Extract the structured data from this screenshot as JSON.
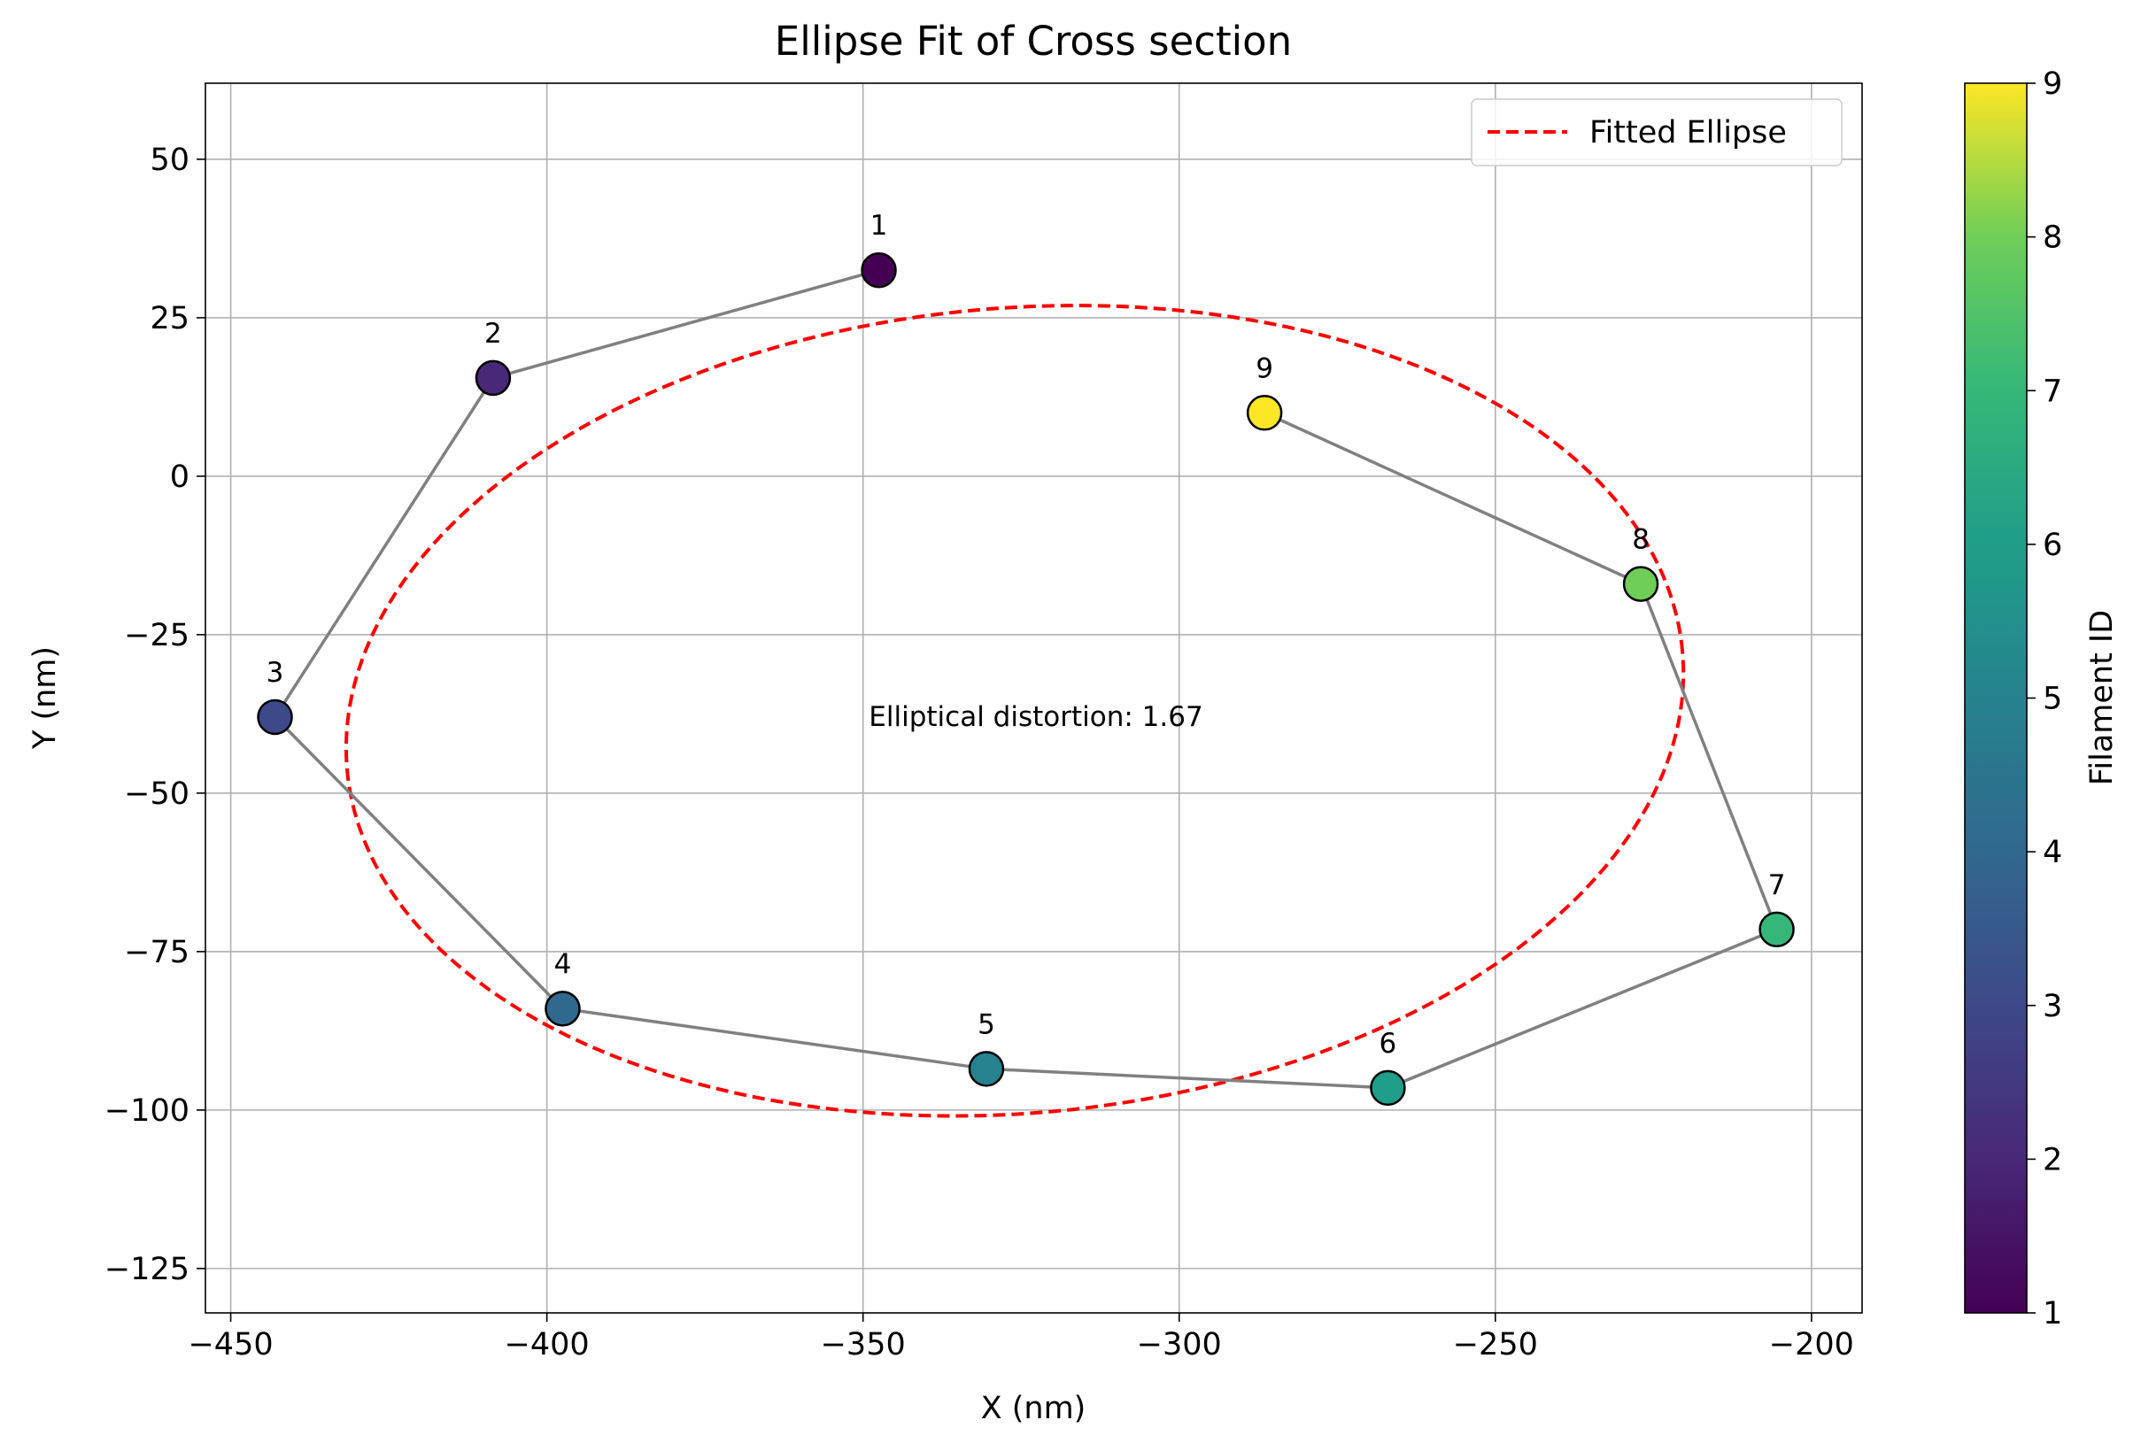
{
  "chart_data": {
    "type": "scatter",
    "title": "Ellipse Fit of Cross section",
    "xlabel": "X (nm)",
    "ylabel": "Y (nm)",
    "xlim": [
      -454,
      -192
    ],
    "ylim": [
      -132,
      62
    ],
    "xticks": [
      -450,
      -400,
      -350,
      -300,
      -250,
      -200
    ],
    "yticks": [
      50,
      25,
      0,
      -25,
      -50,
      -75,
      -100,
      -125
    ],
    "grid": true,
    "legend": {
      "position": "top-right",
      "entries": [
        "Fitted Ellipse"
      ]
    },
    "annotation": "Elliptical distortion: 1.67",
    "points": [
      {
        "id": 1,
        "label": "1",
        "x": -347.5,
        "y": 32.5
      },
      {
        "id": 2,
        "label": "2",
        "x": -408.5,
        "y": 15.5
      },
      {
        "id": 3,
        "label": "3",
        "x": -443,
        "y": -38
      },
      {
        "id": 4,
        "label": "4",
        "x": -397.5,
        "y": -84
      },
      {
        "id": 5,
        "label": "5",
        "x": -330.5,
        "y": -93.5
      },
      {
        "id": 6,
        "label": "6",
        "x": -267,
        "y": -96.5
      },
      {
        "id": 7,
        "label": "7",
        "x": -205.5,
        "y": -71.5
      },
      {
        "id": 8,
        "label": "8",
        "x": -227,
        "y": -17
      },
      {
        "id": 9,
        "label": "9",
        "x": -286.5,
        "y": 10
      }
    ],
    "path_order": [
      1,
      2,
      3,
      4,
      5,
      6,
      7,
      8,
      9
    ],
    "ellipse": {
      "name": "Fitted Ellipse",
      "style": "dashed",
      "color": "#ff0000",
      "center": [
        -326,
        -37
      ],
      "semi_major": 106,
      "semi_minor": 63.5,
      "angle_deg": 5
    },
    "colorbar": {
      "label": "Filament ID",
      "min": 1,
      "max": 9,
      "ticks": [
        1,
        2,
        3,
        4,
        5,
        6,
        7,
        8,
        9
      ],
      "colormap": "viridis"
    },
    "colors": {
      "path_line": "#808080",
      "grid": "#b0b0b0",
      "point_edge": "#000000"
    }
  }
}
